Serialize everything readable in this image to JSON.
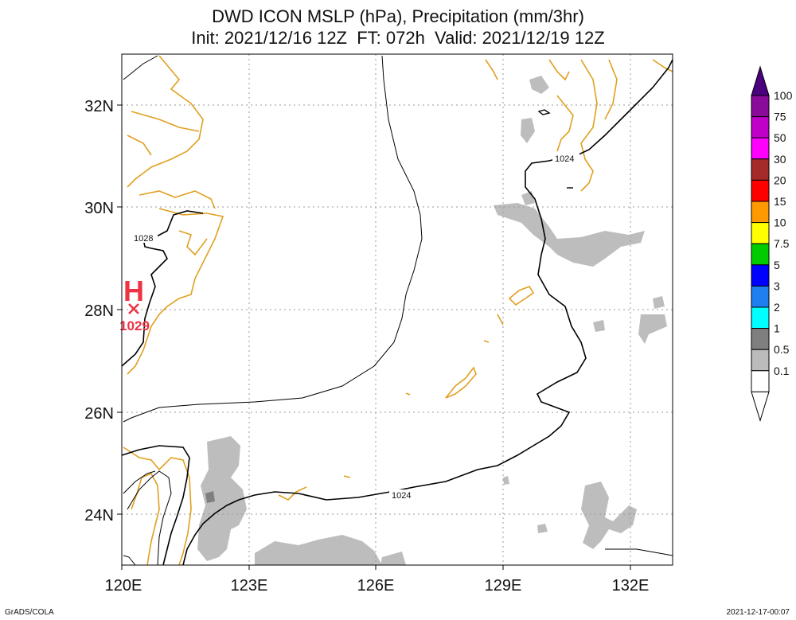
{
  "title_line1": "DWD ICON MSLP (hPa), Precipitation (mm/3hr)",
  "title_line2": "Init: 2021/12/16 12Z  FT: 072h  Valid: 2021/12/19 12Z",
  "lat_ticks": [
    "32N",
    "30N",
    "28N",
    "26N",
    "24N"
  ],
  "lon_ticks": [
    "120E",
    "123E",
    "126E",
    "129E",
    "132E"
  ],
  "high_pressure": {
    "symbol": "H",
    "value": "1029",
    "color": "#ee3344"
  },
  "contour_labels": [
    "1024",
    "1028",
    "1024"
  ],
  "colorbar": {
    "labels": [
      "100",
      "75",
      "50",
      "30",
      "20",
      "15",
      "10",
      "7.5",
      "5",
      "3",
      "2",
      "1",
      "0.5",
      "0.1"
    ],
    "colors": [
      "#8a0a9a",
      "#c000c8",
      "#ff00ff",
      "#a52a2a",
      "#ff0000",
      "#ff9900",
      "#ffff00",
      "#00cc00",
      "#0000ff",
      "#1e7ff0",
      "#00ffff",
      "#7f7f7f",
      "#bbbbbb",
      "#ffffff"
    ],
    "top_color": "#4b0080"
  },
  "colors": {
    "coast": "#e0a020",
    "precip": "#bdbdbd",
    "grid": "#999999"
  },
  "footer_left": "GrADS/COLA",
  "footer_right": "2021-12-17-00:07"
}
